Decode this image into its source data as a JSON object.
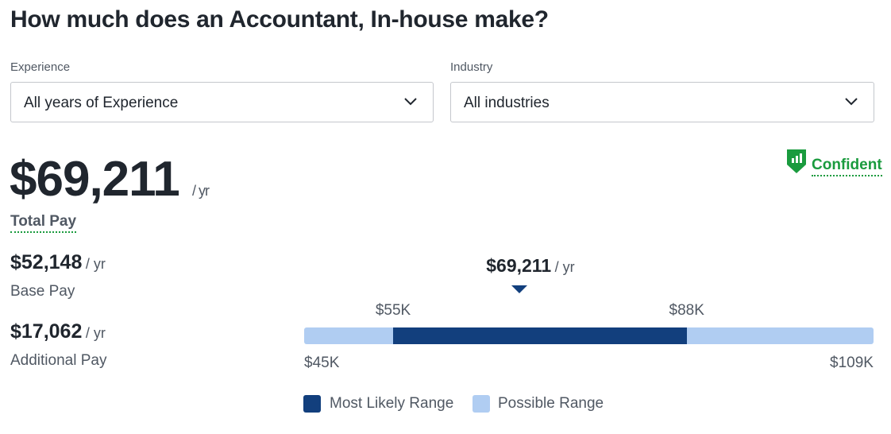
{
  "header": {
    "title": "How much does an Accountant, In-house make?"
  },
  "filters": [
    {
      "label": "Experience",
      "selected": "All years of Experience"
    },
    {
      "label": "Industry",
      "selected": "All industries"
    }
  ],
  "total_pay": {
    "amount": "$69,211",
    "unit": "/ yr",
    "label": "Total Pay"
  },
  "confidence": "Confident",
  "breakdown": [
    {
      "amount": "$52,148",
      "unit": "/ yr",
      "label": "Base Pay"
    },
    {
      "amount": "$17,062",
      "unit": "/ yr",
      "label": "Additional Pay"
    }
  ],
  "range": {
    "min": {
      "value": 45000,
      "label": "$45K"
    },
    "max": {
      "value": 109000,
      "label": "$109K"
    },
    "likely_low": {
      "value": 55000,
      "label": "$55K"
    },
    "likely_high": {
      "value": 88000,
      "label": "$88K"
    },
    "median": {
      "value": 69211,
      "label": "$69,211",
      "unit": "/ yr"
    },
    "colors": {
      "likely": "#123f7d",
      "possible": "#b0cdf2"
    }
  },
  "legend": [
    "Most Likely Range",
    "Possible Range"
  ]
}
